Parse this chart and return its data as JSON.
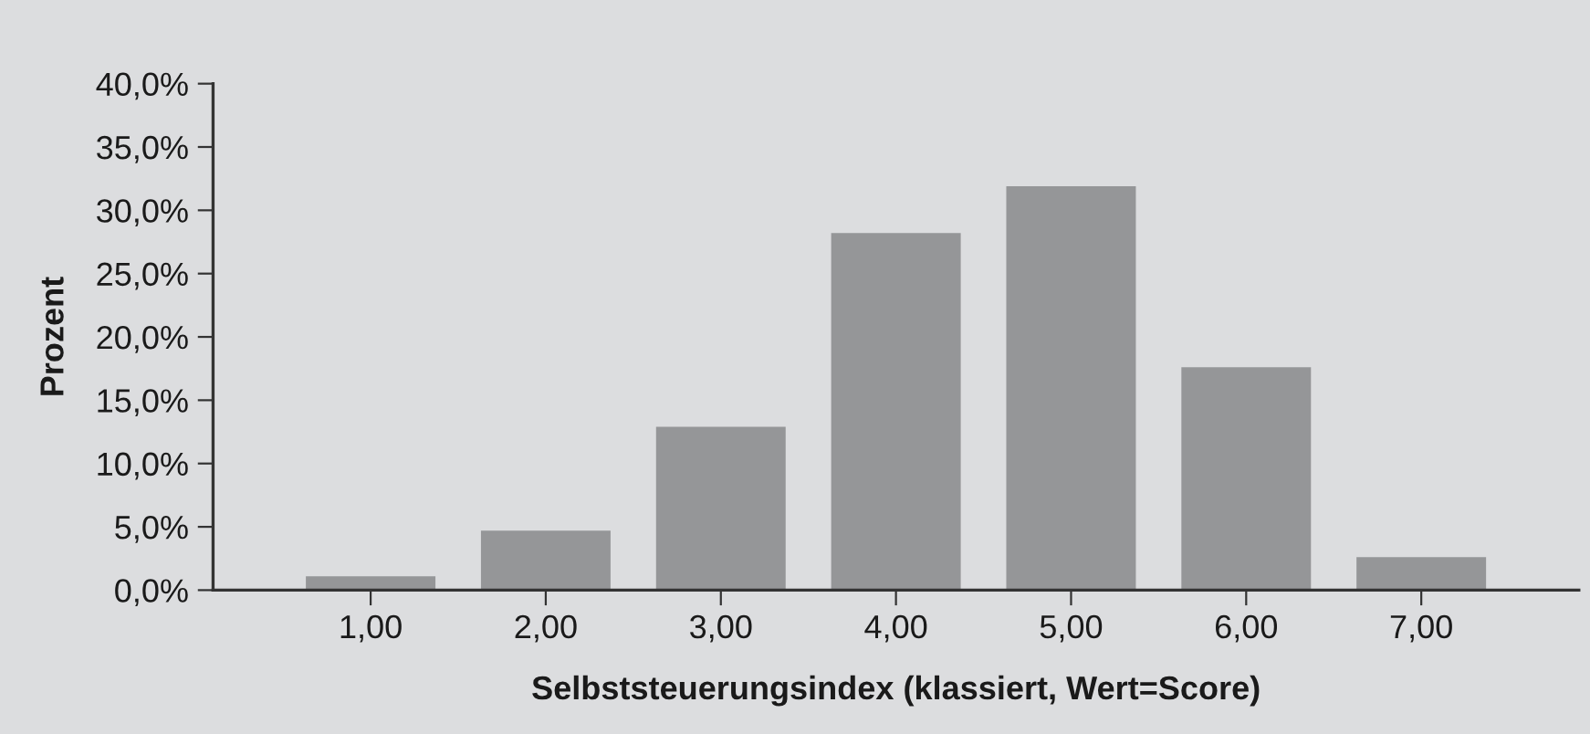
{
  "chart_data": {
    "type": "bar",
    "xlabel": "Selbststeuerungsindex (klassiert, Wert=Score)",
    "ylabel": "Prozent",
    "categories": [
      "1,00",
      "2,00",
      "3,00",
      "4,00",
      "5,00",
      "6,00",
      "7,00"
    ],
    "values": [
      1.1,
      4.7,
      12.9,
      28.2,
      31.9,
      17.6,
      2.6
    ],
    "color": "#959698",
    "ylim": [
      0,
      40
    ],
    "yticks": [
      {
        "value": 0,
        "label": "0,0%"
      },
      {
        "value": 5,
        "label": "5,0%"
      },
      {
        "value": 10,
        "label": "10,0%"
      },
      {
        "value": 15,
        "label": "15,0%"
      },
      {
        "value": 20,
        "label": "20,0%"
      },
      {
        "value": 25,
        "label": "25,0%"
      },
      {
        "value": 30,
        "label": "30,0%"
      },
      {
        "value": 35,
        "label": "35,0%"
      },
      {
        "value": 40,
        "label": "40,0%"
      }
    ],
    "grid": false,
    "legend": false
  }
}
